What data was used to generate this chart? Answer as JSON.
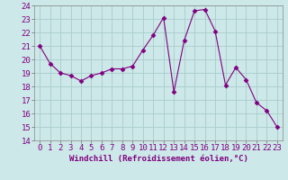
{
  "x": [
    0,
    1,
    2,
    3,
    4,
    5,
    6,
    7,
    8,
    9,
    10,
    11,
    12,
    13,
    14,
    15,
    16,
    17,
    18,
    19,
    20,
    21,
    22,
    23
  ],
  "y": [
    21.0,
    19.7,
    19.0,
    18.8,
    18.4,
    18.8,
    19.0,
    19.3,
    19.3,
    19.5,
    20.7,
    21.8,
    23.1,
    17.6,
    21.4,
    23.6,
    23.7,
    22.1,
    18.1,
    19.4,
    18.5,
    16.8,
    16.2,
    15.0
  ],
  "line_color": "#800080",
  "marker": "D",
  "marker_size": 2.5,
  "bg_color": "#cce8e8",
  "grid_color": "#aacccc",
  "xlabel": "Windchill (Refroidissement éolien,°C)",
  "ylabel": "",
  "xlim": [
    -0.5,
    23.5
  ],
  "ylim": [
    14,
    24
  ],
  "yticks": [
    14,
    15,
    16,
    17,
    18,
    19,
    20,
    21,
    22,
    23,
    24
  ],
  "xticks": [
    0,
    1,
    2,
    3,
    4,
    5,
    6,
    7,
    8,
    9,
    10,
    11,
    12,
    13,
    14,
    15,
    16,
    17,
    18,
    19,
    20,
    21,
    22,
    23
  ],
  "label_fontsize": 6.5,
  "tick_fontsize": 6.5
}
